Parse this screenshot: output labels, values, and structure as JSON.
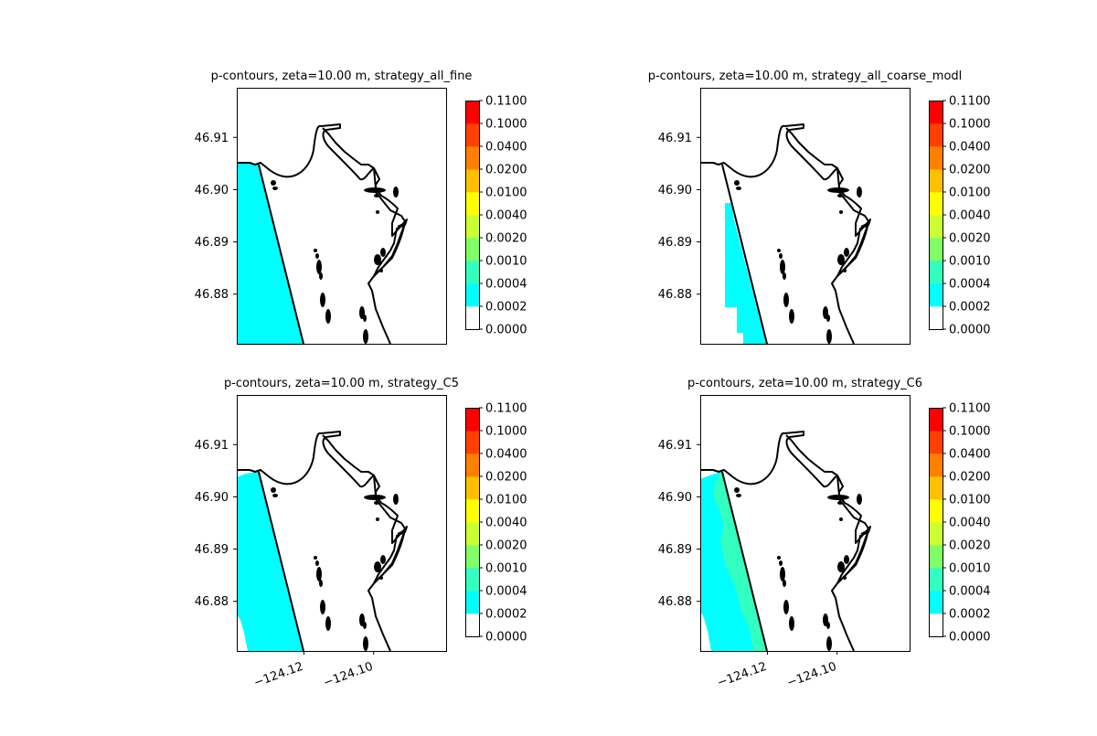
{
  "chart_data": {
    "type": "heatmap",
    "colorbar": {
      "levels": [
        "0.0000",
        "0.0002",
        "0.0004",
        "0.0010",
        "0.0020",
        "0.0040",
        "0.0100",
        "0.0200",
        "0.0400",
        "0.1000",
        "0.1100"
      ],
      "colors": [
        "#ffffff",
        "#00ffff",
        "#33ffc0",
        "#80ff66",
        "#ccff33",
        "#ffff00",
        "#ffc000",
        "#ff8000",
        "#ff4000",
        "#ff0000"
      ]
    },
    "ylim": [
      46.8705,
      46.9195
    ],
    "xlim": [
      -124.1393,
      -124.0792
    ],
    "yticks": [
      {
        "v": 46.91,
        "label": "46.91"
      },
      {
        "v": 46.9,
        "label": "46.90"
      },
      {
        "v": 46.89,
        "label": "46.89"
      },
      {
        "v": 46.88,
        "label": "46.88"
      }
    ],
    "xticks": [
      {
        "v": -124.12,
        "label": "−124.12"
      },
      {
        "v": -124.1,
        "label": "−124.10"
      }
    ],
    "panels": [
      {
        "title": "p-contours, zeta=10.00 m, strategy_all_fine",
        "xticks_visible": false,
        "variant": "fine"
      },
      {
        "title": "p-contours, zeta=10.00 m, strategy_all_coarse_modl",
        "xticks_visible": false,
        "variant": "coarse"
      },
      {
        "title": "p-contours, zeta=10.00 m, strategy_C5",
        "xticks_visible": true,
        "variant": "c5"
      },
      {
        "title": "p-contours, zeta=10.00 m, strategy_C6",
        "xticks_visible": true,
        "variant": "c6"
      }
    ]
  }
}
